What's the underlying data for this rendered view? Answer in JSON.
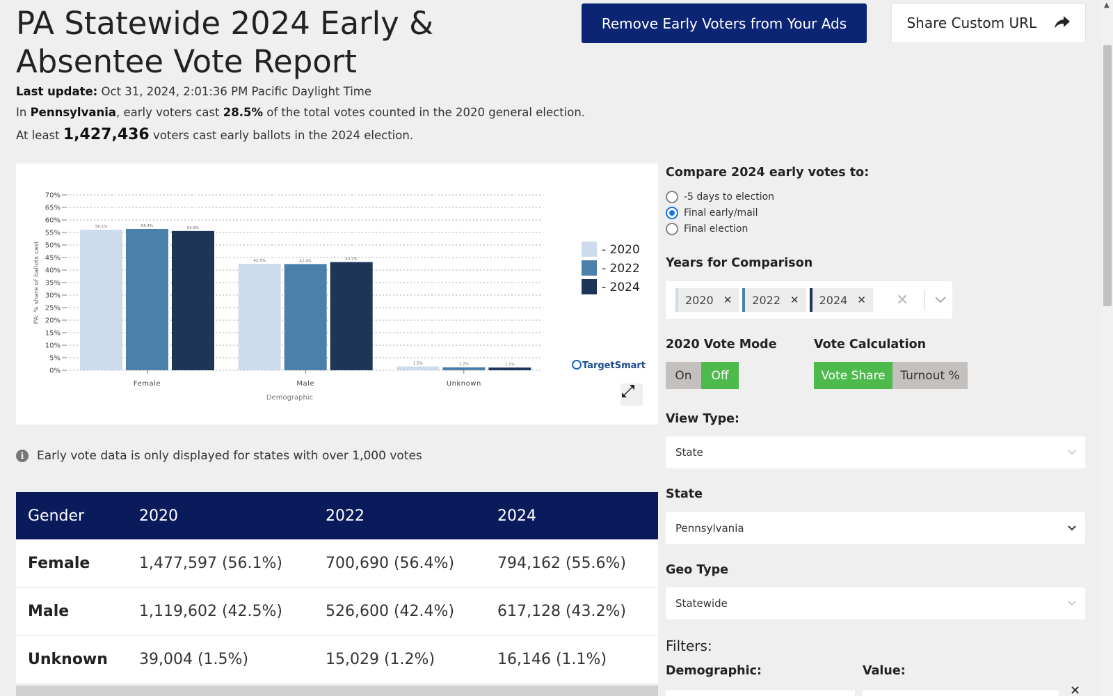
{
  "page": {
    "title": "PA Statewide 2024 Early & Absentee Vote Report",
    "remove_button": "Remove Early Voters from Your Ads",
    "share_button": "Share Custom URL"
  },
  "meta": {
    "last_update_label": "Last update:",
    "last_update_value": "Oct 31, 2024, 2:01:36 PM Pacific Daylight Time",
    "line2_prefix": "In",
    "line2_state": "Pennsylvania",
    "line2_mid": ", early voters cast",
    "line2_pct": "28.5%",
    "line2_suffix": "of the total votes counted in the 2020 general election.",
    "line3_prefix": "At least",
    "line3_count": "1,427,436",
    "line3_suffix": "voters cast early ballots in the 2024 election."
  },
  "chart_data": {
    "type": "bar",
    "categories": [
      "Female",
      "Male",
      "Unknown"
    ],
    "series": [
      {
        "name": "2020",
        "values": [
          56.1,
          42.5,
          1.5
        ],
        "color": "#cddcec"
      },
      {
        "name": "2022",
        "values": [
          56.4,
          42.4,
          1.2
        ],
        "color": "#4a80aa"
      },
      {
        "name": "2024",
        "values": [
          55.6,
          43.2,
          1.1
        ],
        "color": "#1d3557"
      }
    ],
    "data_labels": [
      [
        "56.1%",
        "56.4%",
        "55.6%"
      ],
      [
        "42.5%",
        "42.4%",
        "43.2%"
      ],
      [
        "1.5%",
        "1.2%",
        "1.1%"
      ]
    ],
    "yticks": [
      "0%",
      "5%",
      "10%",
      "15%",
      "20%",
      "25%",
      "30%",
      "35%",
      "40%",
      "45%",
      "50%",
      "55%",
      "60%",
      "65%",
      "70%"
    ],
    "ylim": [
      0,
      70
    ],
    "xlabel": "Demographic",
    "ylabel": "PA: % share of ballots cast",
    "legend": [
      "- 2020",
      "- 2022",
      "- 2024"
    ],
    "legend_position": "right",
    "grid": true,
    "brand": "TargetSmart"
  },
  "info": "Early vote data is only displayed for states with over 1,000 votes",
  "table": {
    "headers": [
      "Gender",
      "2020",
      "2022",
      "2024"
    ],
    "rows": [
      [
        "Female",
        "1,477,597 (56.1%)",
        "700,690 (56.4%)",
        "794,162 (55.6%)"
      ],
      [
        "Male",
        "1,119,602 (42.5%)",
        "526,600 (42.4%)",
        "617,128 (43.2%)"
      ],
      [
        "Unknown",
        "39,004 (1.5%)",
        "15,029 (1.2%)",
        "16,146 (1.1%)"
      ]
    ]
  },
  "panel": {
    "compare_label": "Compare 2024 early votes to:",
    "compare_options": [
      "-5 days to election",
      "Final early/mail",
      "Final election"
    ],
    "compare_selected": "Final early/mail",
    "years_label": "Years for Comparison",
    "years": [
      {
        "label": "2020",
        "color": "#cddcec"
      },
      {
        "label": "2022",
        "color": "#4a80aa"
      },
      {
        "label": "2024",
        "color": "#1d3557"
      }
    ],
    "vote_mode_label": "2020 Vote Mode",
    "vote_mode_on": "On",
    "vote_mode_off": "Off",
    "vote_mode_selected": "Off",
    "vote_calc_label": "Vote Calculation",
    "vote_calc_share": "Vote Share",
    "vote_calc_turnout": "Turnout %",
    "vote_calc_selected": "Vote Share",
    "view_type_label": "View Type:",
    "view_type_value": "State",
    "state_label": "State",
    "state_value": "Pennsylvania",
    "geo_type_label": "Geo Type",
    "geo_type_value": "Statewide",
    "filters_label": "Filters:",
    "demographic_label": "Demographic:",
    "value_label": "Value:"
  }
}
